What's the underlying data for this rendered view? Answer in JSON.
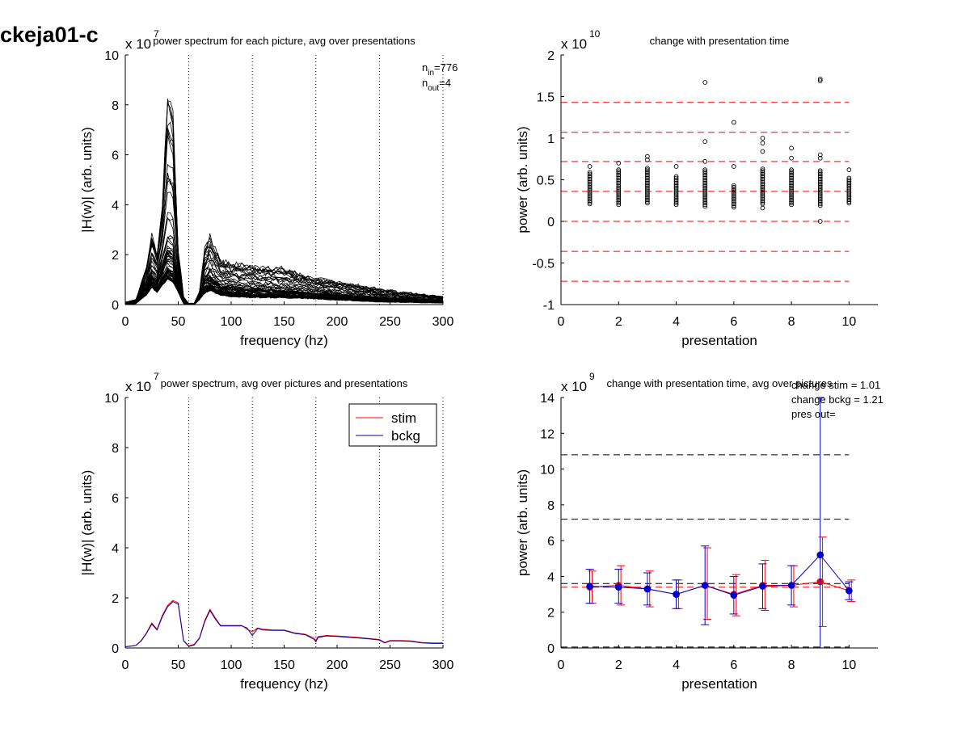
{
  "figure_title": "ckeja01-c",
  "chart_data": [
    {
      "id": "p1",
      "type": "line",
      "title": "power spectrum for each picture, avg over presentations",
      "xlabel": "frequency (hz)",
      "ylabel": "|H(w)| (arb. units)",
      "xlim": [
        0,
        300
      ],
      "ylim": [
        0,
        10
      ],
      "xticks": [
        "0",
        "50",
        "100",
        "150",
        "200",
        "250",
        "300"
      ],
      "yticks": [
        "0",
        "2",
        "4",
        "6",
        "8",
        "10"
      ],
      "multiplier": "x 10",
      "multiplier_exp": "7",
      "vlines": [
        60,
        120,
        180,
        240,
        300
      ],
      "annotations": [
        {
          "base": "n",
          "sub": "in",
          "rest": "=776"
        },
        {
          "base": "n",
          "sub": "out",
          "rest": "=4"
        }
      ],
      "note": "dense overlay of many black spectra; envelope below",
      "x": [
        0,
        10,
        20,
        25,
        30,
        35,
        40,
        45,
        50,
        55,
        60,
        65,
        70,
        75,
        80,
        90,
        100,
        120,
        150,
        180,
        200,
        240,
        270,
        300
      ],
      "envelope_max": [
        0.1,
        0.2,
        1.5,
        2.8,
        2.0,
        4.0,
        8.4,
        7.8,
        2.2,
        0.3,
        0.05,
        0.05,
        0.5,
        2.2,
        2.6,
        1.8,
        1.6,
        1.5,
        1.4,
        1.0,
        0.9,
        0.6,
        0.45,
        0.3
      ],
      "envelope_min": [
        0.0,
        0.05,
        0.4,
        0.7,
        0.5,
        0.8,
        1.0,
        0.9,
        0.5,
        0.05,
        0.0,
        0.0,
        0.2,
        0.5,
        0.6,
        0.4,
        0.35,
        0.3,
        0.3,
        0.25,
        0.2,
        0.12,
        0.1,
        0.08
      ],
      "envelope_mean": [
        0.05,
        0.1,
        0.9,
        1.5,
        1.2,
        2.0,
        3.0,
        2.8,
        1.2,
        0.15,
        0.02,
        0.02,
        0.35,
        1.2,
        1.4,
        1.0,
        0.9,
        0.8,
        0.7,
        0.55,
        0.5,
        0.35,
        0.25,
        0.18
      ]
    },
    {
      "id": "p2",
      "type": "scatter",
      "title": "change with presentation time",
      "xlabel": "presentation",
      "ylabel": "power (arb. units)",
      "xlim": [
        0,
        11
      ],
      "ylim": [
        -1,
        2
      ],
      "xticks": [
        "0",
        "2",
        "4",
        "6",
        "8",
        "10"
      ],
      "xtick_values": [
        0,
        2,
        4,
        6,
        8,
        10
      ],
      "yticks": [
        "-1",
        "-0.5",
        "0",
        "0.5",
        "1",
        "1.5",
        "2"
      ],
      "ytick_values": [
        -1,
        -0.5,
        0,
        0.5,
        1,
        1.5,
        2
      ],
      "multiplier": "x 10",
      "multiplier_exp": "10",
      "hlines_red_dashed": [
        1.43,
        1.07,
        0.72,
        0.36,
        0.0,
        -0.36,
        -0.72
      ],
      "outliers": [
        {
          "x": 1,
          "y": 0.66
        },
        {
          "x": 2,
          "y": 0.7
        },
        {
          "x": 3,
          "y": 0.78
        },
        {
          "x": 3,
          "y": 0.74
        },
        {
          "x": 4,
          "y": 0.66
        },
        {
          "x": 5,
          "y": 1.67
        },
        {
          "x": 5,
          "y": 0.96
        },
        {
          "x": 5,
          "y": 0.72
        },
        {
          "x": 6,
          "y": 1.19
        },
        {
          "x": 6,
          "y": 0.66
        },
        {
          "x": 7,
          "y": 1.0
        },
        {
          "x": 7,
          "y": 0.94
        },
        {
          "x": 7,
          "y": 0.84
        },
        {
          "x": 8,
          "y": 0.88
        },
        {
          "x": 8,
          "y": 0.76
        },
        {
          "x": 9,
          "y": 1.71
        },
        {
          "x": 9,
          "y": 1.69
        },
        {
          "x": 9,
          "y": 0.8
        },
        {
          "x": 9,
          "y": 0.76
        },
        {
          "x": 10,
          "y": 0.62
        },
        {
          "x": 9,
          "y": 0.0
        },
        {
          "x": 6,
          "y": 0.17
        },
        {
          "x": 7,
          "y": 0.16
        }
      ],
      "clusters": [
        {
          "x": 1,
          "min": 0.21,
          "max": 0.6
        },
        {
          "x": 2,
          "min": 0.2,
          "max": 0.63
        },
        {
          "x": 3,
          "min": 0.22,
          "max": 0.64
        },
        {
          "x": 4,
          "min": 0.2,
          "max": 0.54
        },
        {
          "x": 5,
          "min": 0.18,
          "max": 0.62
        },
        {
          "x": 6,
          "min": 0.19,
          "max": 0.44
        },
        {
          "x": 7,
          "min": 0.21,
          "max": 0.64
        },
        {
          "x": 8,
          "min": 0.2,
          "max": 0.62
        },
        {
          "x": 9,
          "min": 0.19,
          "max": 0.62
        },
        {
          "x": 10,
          "min": 0.22,
          "max": 0.52
        }
      ]
    },
    {
      "id": "p3",
      "type": "line",
      "title": "power spectrum, avg over pictures and presentations",
      "xlabel": "frequency (hz)",
      "ylabel": "|H(w)| (arb. units)",
      "xlim": [
        0,
        300
      ],
      "ylim": [
        0,
        10
      ],
      "xticks": [
        "0",
        "50",
        "100",
        "150",
        "200",
        "250",
        "300"
      ],
      "yticks": [
        "0",
        "2",
        "4",
        "6",
        "8",
        "10"
      ],
      "multiplier": "x 10",
      "multiplier_exp": "7",
      "vlines": [
        60,
        120,
        180,
        240,
        300
      ],
      "legend_position": "top-right",
      "x": [
        0,
        10,
        15,
        20,
        25,
        30,
        35,
        40,
        45,
        50,
        55,
        60,
        65,
        70,
        75,
        80,
        85,
        90,
        100,
        110,
        115,
        120,
        125,
        130,
        140,
        150,
        160,
        170,
        178,
        180,
        182,
        190,
        200,
        210,
        220,
        230,
        240,
        245,
        250,
        260,
        270,
        280,
        290,
        300
      ],
      "series": [
        {
          "name": "stim",
          "color": "#ff0000",
          "values": [
            0.05,
            0.1,
            0.3,
            0.6,
            1.0,
            0.75,
            1.3,
            1.7,
            1.9,
            1.8,
            0.3,
            0.08,
            0.15,
            0.4,
            1.1,
            1.55,
            1.2,
            0.9,
            0.9,
            0.9,
            0.75,
            0.65,
            0.8,
            0.75,
            0.72,
            0.72,
            0.6,
            0.55,
            0.4,
            0.3,
            0.45,
            0.5,
            0.48,
            0.45,
            0.42,
            0.38,
            0.34,
            0.22,
            0.3,
            0.3,
            0.28,
            0.22,
            0.2,
            0.2
          ]
        },
        {
          "name": "bckg",
          "color": "#0000aa",
          "values": [
            0.05,
            0.1,
            0.28,
            0.58,
            0.95,
            0.72,
            1.25,
            1.65,
            1.85,
            1.75,
            0.28,
            0.06,
            0.12,
            0.38,
            1.05,
            1.5,
            1.15,
            0.88,
            0.88,
            0.88,
            0.8,
            0.5,
            0.78,
            0.72,
            0.7,
            0.7,
            0.58,
            0.53,
            0.35,
            0.25,
            0.42,
            0.48,
            0.46,
            0.43,
            0.4,
            0.36,
            0.32,
            0.2,
            0.28,
            0.28,
            0.26,
            0.2,
            0.18,
            0.18
          ]
        }
      ]
    },
    {
      "id": "p4",
      "type": "line",
      "title": "change with presentation time, avg over pictures",
      "xlabel": "presentation",
      "ylabel": "power (arb. units)",
      "xlim": [
        0,
        11
      ],
      "ylim": [
        0,
        14
      ],
      "xticks": [
        "0",
        "2",
        "4",
        "6",
        "8",
        "10"
      ],
      "xtick_values": [
        0,
        2,
        4,
        6,
        8,
        10
      ],
      "yticks": [
        "0",
        "2",
        "4",
        "6",
        "8",
        "10",
        "12",
        "14"
      ],
      "ytick_values": [
        0,
        2,
        4,
        6,
        8,
        10,
        12,
        14
      ],
      "multiplier": "x 10",
      "multiplier_exp": "9",
      "annotations": [
        "change stim = 1.01",
        "change bckg = 1.21",
        "pres out="
      ],
      "hlines_black_dashed": [
        10.8,
        7.2,
        3.6,
        0.05
      ],
      "hline_red_dashed": 3.4,
      "x": [
        1,
        2,
        3,
        4,
        5,
        6,
        7,
        8,
        9,
        10
      ],
      "series": [
        {
          "name": "stim",
          "color": "#ff0000",
          "values": [
            3.4,
            3.5,
            3.3,
            3.0,
            3.5,
            3.0,
            3.5,
            3.5,
            3.7,
            3.2
          ],
          "err_low": [
            2.5,
            2.4,
            2.3,
            2.2,
            1.6,
            1.8,
            2.1,
            2.3,
            1.2,
            2.6
          ],
          "err_high": [
            4.3,
            4.6,
            4.3,
            3.8,
            5.6,
            4.1,
            4.9,
            4.6,
            6.2,
            3.8
          ]
        },
        {
          "name": "bckg",
          "color": "#0000cc",
          "values": [
            3.45,
            3.4,
            3.3,
            3.0,
            3.5,
            2.95,
            3.45,
            3.5,
            5.2,
            3.2
          ],
          "err_low": [
            2.5,
            2.5,
            2.4,
            2.2,
            1.3,
            1.9,
            2.2,
            2.4,
            0.0,
            2.7
          ],
          "err_high": [
            4.4,
            4.4,
            4.2,
            3.8,
            5.7,
            4.0,
            4.7,
            4.6,
            14.0,
            3.7
          ]
        }
      ]
    }
  ]
}
